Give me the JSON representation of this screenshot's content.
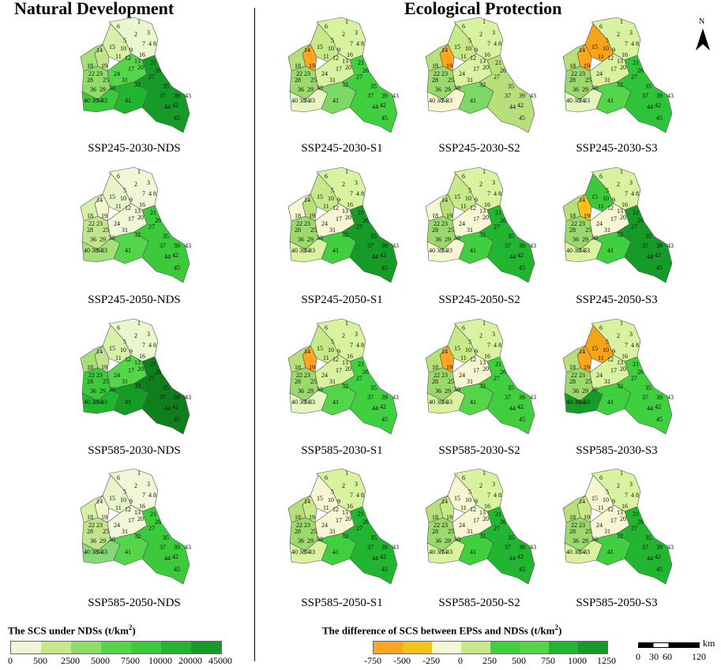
{
  "titles": {
    "left": "Natural Development",
    "right": "Ecological Protection"
  },
  "panels": [
    {
      "label": "SSP245-2030-NDS",
      "legend": "nds",
      "colors": [
        "#eaf7cc",
        "#d6f0a8",
        "#c2e48e",
        "#a4df78",
        "#8fdc6a",
        "#54d54a",
        "#3cc93c",
        "#22b52f",
        "#169a28"
      ]
    },
    {
      "label": "SSP245-2030-S1",
      "legend": "diff",
      "colors": [
        "#d9f2a0",
        "#c8e98a",
        "#ffa51f",
        "#b8e07a",
        "#9bd86e",
        "#d9f2a0",
        "#e6f5c0",
        "#7ed865",
        "#3fcf3f"
      ]
    },
    {
      "label": "SSP245-2030-S2",
      "legend": "diff",
      "colors": [
        "#d9f2a0",
        "#c8e98a",
        "#ffa51f",
        "#b8e07a",
        "#9bd86e",
        "#d9f2a0",
        "#f6f7d2",
        "#7ed865",
        "#b8e07a"
      ]
    },
    {
      "label": "SSP245-2030-S3",
      "legend": "diff",
      "colors": [
        "#d9f2a0",
        "#f6a319",
        "#ffa51f",
        "#b8e07a",
        "#9bd86e",
        "#d9f2a0",
        "#e6f5c0",
        "#54d54a",
        "#2fc33a"
      ]
    },
    {
      "label": "SSP245-2050-NDS",
      "legend": "nds",
      "colors": [
        "#f1f6d6",
        "#e8f4c8",
        "#f3f5cd",
        "#d6f0a8",
        "#c2e48e",
        "#f1f6d6",
        "#a4df78",
        "#54d54a",
        "#3cc93c"
      ]
    },
    {
      "label": "SSP245-2050-S1",
      "legend": "diff",
      "colors": [
        "#d9f2a0",
        "#c8e98a",
        "#b8e07a",
        "#f6f7d2",
        "#9bd86e",
        "#f6f7d2",
        "#d9f2a0",
        "#3fcf3f",
        "#169a28"
      ]
    },
    {
      "label": "SSP245-2050-S2",
      "legend": "diff",
      "colors": [
        "#d9f2a0",
        "#c8e98a",
        "#b8e07a",
        "#f6f7d2",
        "#9bd86e",
        "#f6f7d2",
        "#f6f7d2",
        "#3fcf3f",
        "#22b52f"
      ]
    },
    {
      "label": "SSP245-2050-S3",
      "legend": "diff",
      "colors": [
        "#d9f2a0",
        "#3cc93c",
        "#f6c21a",
        "#b8e07a",
        "#9bd86e",
        "#f6f7d2",
        "#d9f2a0",
        "#3fcf3f",
        "#169a28"
      ]
    },
    {
      "label": "SSP585-2030-NDS",
      "legend": "nds",
      "colors": [
        "#eaf7cc",
        "#d6f0a8",
        "#c2e48e",
        "#a4df78",
        "#3cc93c",
        "#54d54a",
        "#22b52f",
        "#169a28",
        "#0f7f1e"
      ]
    },
    {
      "label": "SSP585-2030-S1",
      "legend": "diff",
      "colors": [
        "#d9f2a0",
        "#c8e98a",
        "#ffa51f",
        "#b8e07a",
        "#9bd86e",
        "#d9f2a0",
        "#e6f5c0",
        "#54d54a",
        "#3fcf3f"
      ]
    },
    {
      "label": "SSP585-2030-S2",
      "legend": "diff",
      "colors": [
        "#d9f2a0",
        "#c8e98a",
        "#ffa51f",
        "#b8e07a",
        "#9bd86e",
        "#f6f7d2",
        "#d9f2a0",
        "#54d54a",
        "#3fcf3f"
      ]
    },
    {
      "label": "SSP585-2030-S3",
      "legend": "diff",
      "colors": [
        "#d9f2a0",
        "#f6a319",
        "#ffa51f",
        "#b8e07a",
        "#9bd86e",
        "#d9f2a0",
        "#169a28",
        "#3fcf3f",
        "#3fcf3f"
      ]
    },
    {
      "label": "SSP585-2050-NDS",
      "legend": "nds",
      "colors": [
        "#f1f6d6",
        "#e8f4c8",
        "#f3f5cd",
        "#d6f0a8",
        "#c2e48e",
        "#f1f6d6",
        "#86d97a",
        "#54d54a",
        "#3cc93c"
      ]
    },
    {
      "label": "SSP585-2050-S1",
      "legend": "diff",
      "colors": [
        "#d9f2a0",
        "#f6f7d2",
        "#c8e98a",
        "#b8e07a",
        "#9bd86e",
        "#f6f7d2",
        "#d9f2a0",
        "#3fcf3f",
        "#22b52f"
      ]
    },
    {
      "label": "SSP585-2050-S2",
      "legend": "diff",
      "colors": [
        "#d9f2a0",
        "#f6f7d2",
        "#c8e98a",
        "#b8e07a",
        "#9bd86e",
        "#f6f7d2",
        "#d9f2a0",
        "#3fcf3f",
        "#22b52f"
      ]
    },
    {
      "label": "SSP585-2050-S3",
      "legend": "diff",
      "colors": [
        "#d9f2a0",
        "#f6f7d2",
        "#c8e98a",
        "#b8e07a",
        "#9bd86e",
        "#f6f7d2",
        "#d9f2a0",
        "#3fcf3f",
        "#22b52f"
      ]
    }
  ],
  "zone_numbers": [
    "1",
    "2",
    "3",
    "4",
    "5",
    "6",
    "7",
    "8",
    "9",
    "10",
    "11",
    "12",
    "13",
    "14",
    "15",
    "16",
    "17",
    "18",
    "19",
    "20",
    "21",
    "22",
    "23",
    "24",
    "25",
    "26",
    "27",
    "28",
    "29",
    "30",
    "31",
    "32",
    "33",
    "34",
    "35",
    "36",
    "37",
    "38",
    "39",
    "40",
    "41",
    "42",
    "43",
    "44",
    "45"
  ],
  "legend_nds": {
    "title": "The SCS under NDSs (t/km",
    "title_sup": "2",
    "title_end": ")",
    "colors": [
      "#f1f6d6",
      "#c8e98a",
      "#8fdc6a",
      "#54d54a",
      "#3cc93c",
      "#22b52f",
      "#169a28"
    ],
    "ticks": [
      "0",
      "500",
      "2500",
      "5000",
      "7500",
      "10000",
      "20000",
      "45000"
    ]
  },
  "legend_diff": {
    "title": "The difference of SCS between EPSs and NDSs (t/km",
    "title_sup": "2",
    "title_end": ")",
    "colors": [
      "#ffa51f",
      "#f6c21a",
      "#f6f7d2",
      "#c8e98a",
      "#3fcf3f",
      "#54d54a",
      "#22b52f",
      "#169a28"
    ],
    "ticks": [
      "-750",
      "-500",
      "-250",
      "0",
      "250",
      "500",
      "750",
      "1000",
      "1250"
    ]
  },
  "north_arrow": {
    "label": "N"
  },
  "scale_bar": {
    "unit": "km",
    "ticks": [
      "0",
      "30",
      "60",
      "120"
    ]
  }
}
